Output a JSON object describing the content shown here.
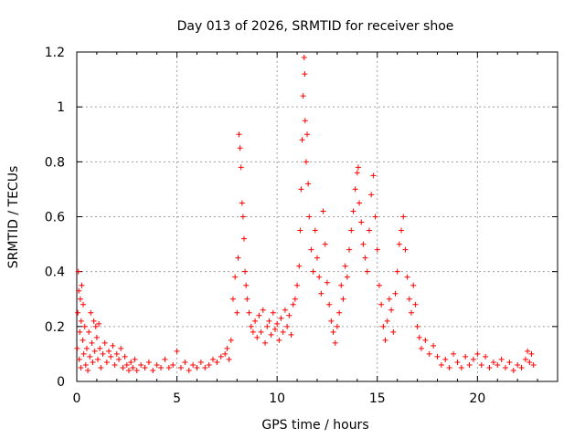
{
  "chart_data": {
    "type": "scatter",
    "title": "Day 013 of 2026, SRMTID for receiver shoe",
    "xlabel": "GPS time / hours",
    "ylabel": "SRMTID / TECUs",
    "xlim": [
      0,
      24
    ],
    "ylim": [
      0,
      1.2
    ],
    "xticks": [
      0,
      5,
      10,
      15,
      20
    ],
    "yticks": [
      0,
      0.2,
      0.4,
      0.6,
      0.8,
      1.0,
      1.2
    ],
    "xtick_labels": [
      "0",
      "5",
      "10",
      "15",
      "20"
    ],
    "ytick_labels": [
      "0",
      "0.2",
      "0.4",
      "0.6",
      "0.8",
      "1",
      "1.2"
    ],
    "grid": true,
    "marker": "+",
    "series_color": "#ff0000",
    "series": [
      {
        "name": "SRMTID",
        "points": [
          [
            0.02,
            0.12
          ],
          [
            0.05,
            0.25
          ],
          [
            0.08,
            0.4
          ],
          [
            0.1,
            0.33
          ],
          [
            0.12,
            0.08
          ],
          [
            0.15,
            0.18
          ],
          [
            0.18,
            0.3
          ],
          [
            0.2,
            0.05
          ],
          [
            0.22,
            0.22
          ],
          [
            0.25,
            0.35
          ],
          [
            0.3,
            0.15
          ],
          [
            0.32,
            0.28
          ],
          [
            0.35,
            0.1
          ],
          [
            0.4,
            0.2
          ],
          [
            0.45,
            0.06
          ],
          [
            0.5,
            0.12
          ],
          [
            0.55,
            0.04
          ],
          [
            0.6,
            0.18
          ],
          [
            0.65,
            0.09
          ],
          [
            0.7,
            0.25
          ],
          [
            0.75,
            0.14
          ],
          [
            0.8,
            0.07
          ],
          [
            0.85,
            0.22
          ],
          [
            0.9,
            0.11
          ],
          [
            0.95,
            0.2
          ],
          [
            1.0,
            0.16
          ],
          [
            1.05,
            0.08
          ],
          [
            1.1,
            0.21
          ],
          [
            1.15,
            0.12
          ],
          [
            1.2,
            0.05
          ],
          [
            1.3,
            0.1
          ],
          [
            1.4,
            0.14
          ],
          [
            1.5,
            0.07
          ],
          [
            1.6,
            0.11
          ],
          [
            1.7,
            0.09
          ],
          [
            1.8,
            0.13
          ],
          [
            1.9,
            0.06
          ],
          [
            2.0,
            0.1
          ],
          [
            2.1,
            0.08
          ],
          [
            2.2,
            0.12
          ],
          [
            2.3,
            0.05
          ],
          [
            2.4,
            0.09
          ],
          [
            2.5,
            0.06
          ],
          [
            2.6,
            0.04
          ],
          [
            2.7,
            0.07
          ],
          [
            2.8,
            0.05
          ],
          [
            2.9,
            0.08
          ],
          [
            3.0,
            0.04
          ],
          [
            3.2,
            0.06
          ],
          [
            3.4,
            0.05
          ],
          [
            3.6,
            0.07
          ],
          [
            3.8,
            0.04
          ],
          [
            4.0,
            0.06
          ],
          [
            4.2,
            0.05
          ],
          [
            4.4,
            0.08
          ],
          [
            4.6,
            0.05
          ],
          [
            4.8,
            0.06
          ],
          [
            5.0,
            0.11
          ],
          [
            5.2,
            0.05
          ],
          [
            5.4,
            0.07
          ],
          [
            5.6,
            0.04
          ],
          [
            5.8,
            0.06
          ],
          [
            6.0,
            0.05
          ],
          [
            6.2,
            0.07
          ],
          [
            6.4,
            0.05
          ],
          [
            6.6,
            0.06
          ],
          [
            6.8,
            0.08
          ],
          [
            7.0,
            0.07
          ],
          [
            7.2,
            0.09
          ],
          [
            7.4,
            0.1
          ],
          [
            7.5,
            0.12
          ],
          [
            7.6,
            0.08
          ],
          [
            7.7,
            0.15
          ],
          [
            7.8,
            0.3
          ],
          [
            7.9,
            0.38
          ],
          [
            8.0,
            0.25
          ],
          [
            8.05,
            0.45
          ],
          [
            8.1,
            0.9
          ],
          [
            8.15,
            0.85
          ],
          [
            8.2,
            0.78
          ],
          [
            8.25,
            0.65
          ],
          [
            8.3,
            0.6
          ],
          [
            8.35,
            0.52
          ],
          [
            8.4,
            0.4
          ],
          [
            8.45,
            0.35
          ],
          [
            8.5,
            0.3
          ],
          [
            8.6,
            0.25
          ],
          [
            8.7,
            0.2
          ],
          [
            8.8,
            0.18
          ],
          [
            8.9,
            0.22
          ],
          [
            9.0,
            0.16
          ],
          [
            9.1,
            0.24
          ],
          [
            9.2,
            0.18
          ],
          [
            9.3,
            0.26
          ],
          [
            9.4,
            0.14
          ],
          [
            9.5,
            0.2
          ],
          [
            9.6,
            0.22
          ],
          [
            9.7,
            0.17
          ],
          [
            9.8,
            0.25
          ],
          [
            9.9,
            0.19
          ],
          [
            10.0,
            0.21
          ],
          [
            10.1,
            0.15
          ],
          [
            10.2,
            0.23
          ],
          [
            10.3,
            0.18
          ],
          [
            10.4,
            0.26
          ],
          [
            10.5,
            0.2
          ],
          [
            10.6,
            0.24
          ],
          [
            10.7,
            0.17
          ],
          [
            10.8,
            0.28
          ],
          [
            10.9,
            0.3
          ],
          [
            11.0,
            0.35
          ],
          [
            11.1,
            0.42
          ],
          [
            11.15,
            0.55
          ],
          [
            11.2,
            0.7
          ],
          [
            11.25,
            0.88
          ],
          [
            11.3,
            1.04
          ],
          [
            11.35,
            1.18
          ],
          [
            11.38,
            1.12
          ],
          [
            11.4,
            0.95
          ],
          [
            11.45,
            0.8
          ],
          [
            11.5,
            0.9
          ],
          [
            11.55,
            0.72
          ],
          [
            11.6,
            0.6
          ],
          [
            11.7,
            0.48
          ],
          [
            11.8,
            0.4
          ],
          [
            11.9,
            0.55
          ],
          [
            12.0,
            0.45
          ],
          [
            12.1,
            0.38
          ],
          [
            12.2,
            0.32
          ],
          [
            12.3,
            0.62
          ],
          [
            12.4,
            0.5
          ],
          [
            12.5,
            0.36
          ],
          [
            12.6,
            0.28
          ],
          [
            12.7,
            0.22
          ],
          [
            12.8,
            0.18
          ],
          [
            12.9,
            0.14
          ],
          [
            13.0,
            0.2
          ],
          [
            13.1,
            0.25
          ],
          [
            13.2,
            0.35
          ],
          [
            13.3,
            0.3
          ],
          [
            13.4,
            0.42
          ],
          [
            13.5,
            0.38
          ],
          [
            13.6,
            0.48
          ],
          [
            13.7,
            0.55
          ],
          [
            13.8,
            0.62
          ],
          [
            13.9,
            0.7
          ],
          [
            14.0,
            0.76
          ],
          [
            14.05,
            0.78
          ],
          [
            14.1,
            0.65
          ],
          [
            14.2,
            0.58
          ],
          [
            14.3,
            0.5
          ],
          [
            14.4,
            0.45
          ],
          [
            14.5,
            0.4
          ],
          [
            14.6,
            0.55
          ],
          [
            14.7,
            0.68
          ],
          [
            14.8,
            0.75
          ],
          [
            14.9,
            0.6
          ],
          [
            15.0,
            0.48
          ],
          [
            15.1,
            0.35
          ],
          [
            15.2,
            0.28
          ],
          [
            15.3,
            0.2
          ],
          [
            15.4,
            0.15
          ],
          [
            15.5,
            0.22
          ],
          [
            15.6,
            0.3
          ],
          [
            15.7,
            0.26
          ],
          [
            15.8,
            0.18
          ],
          [
            15.9,
            0.32
          ],
          [
            16.0,
            0.4
          ],
          [
            16.1,
            0.5
          ],
          [
            16.2,
            0.55
          ],
          [
            16.3,
            0.6
          ],
          [
            16.4,
            0.48
          ],
          [
            16.5,
            0.38
          ],
          [
            16.6,
            0.3
          ],
          [
            16.7,
            0.25
          ],
          [
            16.8,
            0.35
          ],
          [
            16.9,
            0.28
          ],
          [
            17.0,
            0.2
          ],
          [
            17.1,
            0.16
          ],
          [
            17.2,
            0.12
          ],
          [
            17.4,
            0.15
          ],
          [
            17.6,
            0.1
          ],
          [
            17.8,
            0.13
          ],
          [
            18.0,
            0.09
          ],
          [
            18.2,
            0.06
          ],
          [
            18.4,
            0.08
          ],
          [
            18.6,
            0.05
          ],
          [
            18.8,
            0.1
          ],
          [
            19.0,
            0.07
          ],
          [
            19.2,
            0.05
          ],
          [
            19.4,
            0.09
          ],
          [
            19.6,
            0.06
          ],
          [
            19.8,
            0.08
          ],
          [
            20.0,
            0.1
          ],
          [
            20.2,
            0.06
          ],
          [
            20.4,
            0.09
          ],
          [
            20.6,
            0.05
          ],
          [
            20.8,
            0.07
          ],
          [
            21.0,
            0.06
          ],
          [
            21.2,
            0.08
          ],
          [
            21.4,
            0.05
          ],
          [
            21.6,
            0.07
          ],
          [
            21.8,
            0.04
          ],
          [
            22.0,
            0.06
          ],
          [
            22.2,
            0.05
          ],
          [
            22.4,
            0.08
          ],
          [
            22.5,
            0.11
          ],
          [
            22.6,
            0.07
          ],
          [
            22.7,
            0.1
          ],
          [
            22.8,
            0.06
          ]
        ]
      }
    ]
  }
}
